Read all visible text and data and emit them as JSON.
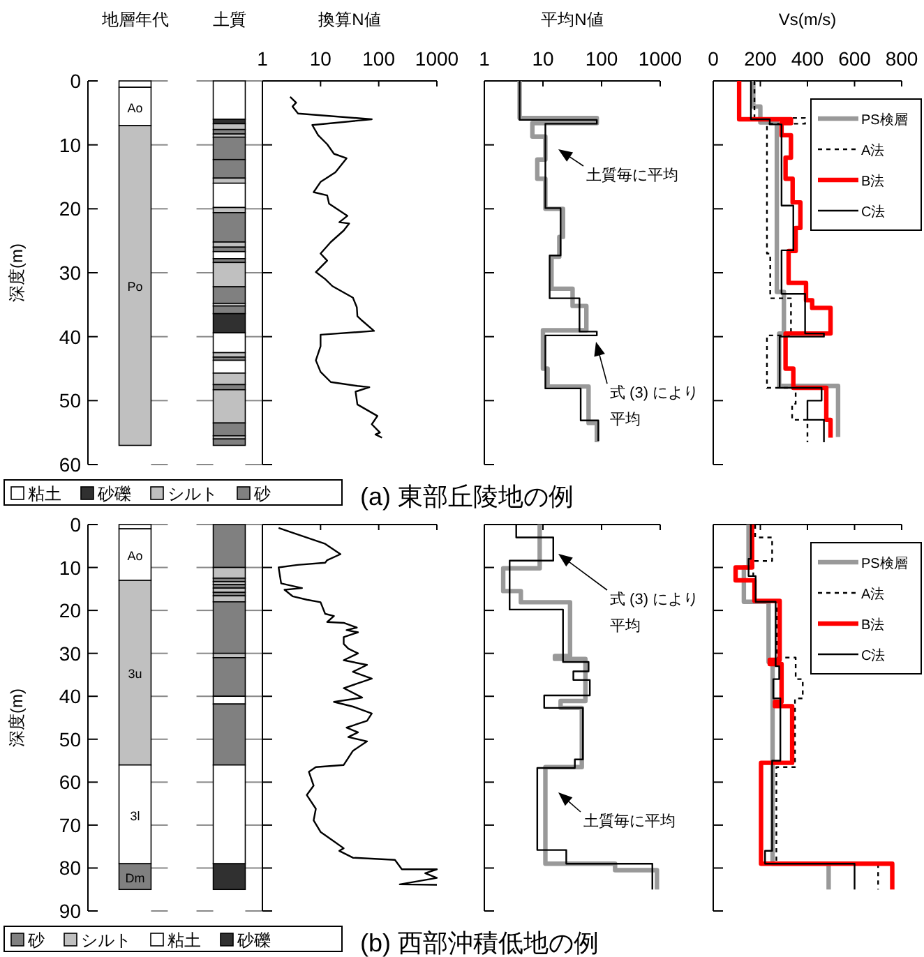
{
  "chart_data": [
    {
      "type": "bar",
      "stacked": true,
      "ylabel": "深度(m)",
      "categories": [
        "地層年代",
        "土質"
      ],
      "ylim": [
        60,
        0
      ],
      "yticks": [
        0,
        10,
        20,
        30,
        40,
        50,
        60
      ],
      "legend": "bottom",
      "annotations": [
        "(a) 東部丘陵地の例"
      ],
      "series": [
        {
          "color": "#ffffff",
          "values": [
            1,
            null
          ]
        },
        {
          "name": "Ao",
          "color": "#ffffff",
          "values": [
            6,
            null
          ]
        },
        {
          "name": "Po",
          "color": "#c0c0c0",
          "values": [
            50,
            null
          ]
        },
        {
          "name": "粘土",
          "color": "#ffffff",
          "values": [
            null,
            6
          ]
        },
        {
          "name": "砂礫",
          "color": "#303030",
          "values": [
            null,
            0.7
          ]
        },
        {
          "name": "シルト",
          "color": "#c0c0c0",
          "values": [
            null,
            0.9
          ]
        },
        {
          "name": "砂",
          "color": "#808080",
          "values": [
            null,
            0.7
          ]
        },
        {
          "color": "#c0c0c0",
          "values": [
            null,
            0.5
          ]
        },
        {
          "color": "#808080",
          "values": [
            null,
            3.5
          ]
        },
        {
          "color": "#808080",
          "values": [
            null,
            2.9
          ]
        },
        {
          "color": "#c0c0c0",
          "values": [
            null,
            0.8
          ]
        },
        {
          "color": "#ffffff",
          "values": [
            null,
            3.8
          ]
        },
        {
          "color": "#c0c0c0",
          "values": [
            null,
            0.8
          ]
        },
        {
          "color": "#808080",
          "values": [
            null,
            4.6
          ]
        },
        {
          "color": "#c0c0c0",
          "values": [
            null,
            0.8
          ]
        },
        {
          "color": "#808080",
          "values": [
            null,
            0.7
          ]
        },
        {
          "color": "#ffffff",
          "values": [
            null,
            1.1
          ]
        },
        {
          "color": "#808080",
          "values": [
            null,
            0.6
          ]
        },
        {
          "color": "#c0c0c0",
          "values": [
            null,
            3.8
          ]
        },
        {
          "color": "#808080",
          "values": [
            null,
            2.6
          ]
        },
        {
          "color": "#c0c0c0",
          "values": [
            null,
            0.4
          ]
        },
        {
          "color": "#808080",
          "values": [
            null,
            1.2
          ]
        },
        {
          "color": "#303030",
          "values": [
            null,
            3
          ]
        },
        {
          "color": "#ffffff",
          "values": [
            null,
            3.1
          ]
        },
        {
          "color": "#c0c0c0",
          "values": [
            null,
            0.7
          ]
        },
        {
          "color": "#808080",
          "values": [
            null,
            0.5
          ]
        },
        {
          "color": "#ffffff",
          "values": [
            null,
            2
          ]
        },
        {
          "color": "#c0c0c0",
          "values": [
            null,
            1.8
          ]
        },
        {
          "color": "#808080",
          "values": [
            null,
            0.8
          ]
        },
        {
          "color": "#c0c0c0",
          "values": [
            null,
            5.2
          ]
        },
        {
          "color": "#808080",
          "values": [
            null,
            2
          ]
        },
        {
          "color": "#c0c0c0",
          "values": [
            null,
            0.5
          ]
        },
        {
          "color": "#808080",
          "values": [
            null,
            1
          ]
        }
      ]
    },
    {
      "type": "line",
      "title": "換算N値",
      "log": "x",
      "xlim": [
        1,
        1000
      ],
      "xticks": [
        1,
        10,
        100,
        1000
      ],
      "ylim": [
        60,
        0
      ],
      "yticks": [
        0,
        10,
        20,
        30,
        40,
        50,
        60
      ],
      "tick_labels": "x",
      "series": [
        {
          "color": "#000000",
          "x": [
            3.0,
            3.8,
            3.3,
            4.1,
            76,
            7.2,
            9.1,
            13,
            17,
            28,
            18,
            10,
            7.6,
            13,
            14,
            29,
            21,
            31,
            25,
            15,
            10,
            13,
            8.3,
            12,
            16,
            36,
            42,
            43,
            52,
            83,
            10,
            10,
            8.3,
            10,
            15,
            43,
            69,
            40,
            43,
            95,
            76,
            105,
            88,
            114
          ],
          "values": [
            2.5,
            3.4,
            4.0,
            5.1,
            6.0,
            6.9,
            8.5,
            9.9,
            11.4,
            12.1,
            14.3,
            15.8,
            17.4,
            17.9,
            19.2,
            21.1,
            22.1,
            22.3,
            23.4,
            25.2,
            27.0,
            28.1,
            29.9,
            31.0,
            32.1,
            33.9,
            35.4,
            36.8,
            37.5,
            39.1,
            39.7,
            41.5,
            43.7,
            45.5,
            47.1,
            47.7,
            47.9,
            48.6,
            50.6,
            52.4,
            53.7,
            55.0,
            55.3,
            55.8
          ]
        }
      ]
    },
    {
      "type": "line",
      "title": "平均N値",
      "log": "x",
      "xlim": [
        1,
        1000
      ],
      "xticks": [
        1,
        10,
        100,
        1000
      ],
      "ylim": [
        60,
        0
      ],
      "yticks": [
        0,
        10,
        20,
        30,
        40,
        50,
        60
      ],
      "tick_labels": "x",
      "annotations": [
        "土質毎に平均",
        "式 (3) により平均"
      ],
      "series": [
        {
          "color": "#999999",
          "x": [
            4,
            4,
            83,
            83,
            6.6,
            6.6,
            11,
            11,
            8,
            8,
            11,
            11,
            22,
            22,
            19,
            19,
            14,
            14,
            32,
            32,
            55,
            55,
            10,
            10,
            12,
            12,
            60,
            60,
            83,
            83
          ],
          "values": [
            0,
            5.8,
            5.8,
            6.6,
            6.6,
            8.7,
            8.7,
            12.3,
            12.3,
            15.3,
            15.3,
            20,
            20,
            24.4,
            24.4,
            27.5,
            27.5,
            32.5,
            32.5,
            35.2,
            35.2,
            39,
            39,
            45,
            45,
            47.8,
            47.8,
            53.5,
            53.5,
            56.5
          ]
        },
        {
          "color": "#000000",
          "x": [
            4,
            4,
            83,
            83,
            11,
            11,
            20,
            20,
            13,
            13,
            42,
            42,
            83,
            83,
            11,
            11,
            44,
            44,
            88,
            88
          ],
          "values": [
            0,
            6.1,
            6.1,
            6.7,
            6.7,
            19.9,
            19.9,
            27.3,
            27.3,
            34,
            34,
            39.2,
            39.2,
            39.8,
            39.8,
            48.1,
            48.1,
            53.1,
            53.1,
            56.3
          ]
        }
      ]
    },
    {
      "type": "line",
      "title": "Vs(m/s)",
      "xlim": [
        0,
        800
      ],
      "xticks": [
        0,
        200,
        400,
        600,
        800
      ],
      "ylim": [
        60,
        0
      ],
      "yticks": [
        0,
        10,
        20,
        30,
        40,
        50,
        60
      ],
      "tick_labels": "x",
      "legend": "top right",
      "series": [
        {
          "name": "PS検層",
          "color": "#999999",
          "x": [
            170,
            170,
            200,
            200,
            270,
            270,
            300,
            300,
            280,
            280,
            530,
            530
          ],
          "values": [
            0,
            4,
            4,
            6.5,
            6.5,
            33,
            33,
            39.5,
            39.5,
            47.7,
            47.7,
            55.7
          ]
        },
        {
          "name": "A法",
          "color": "#000000",
          "line_style": "dashed",
          "x": [
            175,
            175,
            390,
            390,
            228,
            228,
            242,
            242,
            330,
            330,
            228,
            228,
            350,
            350,
            335,
            335,
            400,
            400
          ],
          "values": [
            0,
            5.8,
            5.8,
            6.7,
            6.7,
            27,
            27,
            34,
            34,
            39.8,
            39.8,
            48,
            48,
            50.5,
            50.5,
            53,
            53,
            56.5
          ]
        },
        {
          "name": "B法",
          "color": "#ff0000",
          "x": [
            110,
            110,
            330,
            330,
            290,
            290,
            330,
            330,
            307,
            307,
            337,
            337,
            370,
            370,
            350,
            350,
            320,
            320,
            394,
            394,
            420,
            420,
            498,
            498,
            307,
            307,
            340,
            340,
            480,
            480,
            498,
            498
          ],
          "values": [
            0,
            6,
            6,
            6.6,
            6.6,
            8.5,
            8.5,
            12,
            12,
            15.3,
            15.3,
            19,
            19,
            23,
            23,
            26.6,
            26.6,
            31.6,
            31.6,
            34.3,
            34.3,
            35.5,
            35.5,
            39.5,
            39.5,
            45,
            45,
            48,
            48,
            53,
            53,
            55.8
          ]
        },
        {
          "name": "C法",
          "color": "#000000",
          "x": [
            160,
            160,
            240,
            240,
            290,
            290,
            340,
            340,
            290,
            290,
            390,
            390,
            470,
            470,
            282,
            282,
            460,
            460,
            400,
            400,
            470,
            470
          ],
          "values": [
            0,
            6,
            6,
            6.8,
            6.8,
            19.5,
            19.5,
            26.5,
            26.5,
            33.3,
            33.3,
            39.5,
            39.5,
            40,
            40,
            48,
            48,
            50,
            50,
            53,
            53,
            56.5
          ]
        }
      ]
    },
    {
      "type": "bar",
      "stacked": true,
      "ylabel": "深度(m)",
      "categories": [
        null,
        null
      ],
      "ylim": [
        90,
        0
      ],
      "yticks": [
        0,
        10,
        20,
        30,
        40,
        50,
        60,
        70,
        80,
        90
      ],
      "legend": "bottom",
      "annotations": [
        "(b) 西部沖積低地の例"
      ],
      "series": [
        {
          "color": "#ffffff",
          "values": [
            1,
            null
          ]
        },
        {
          "name": "Ao",
          "color": "#ffffff",
          "values": [
            12,
            null
          ]
        },
        {
          "name": "3u",
          "color": "#c0c0c0",
          "values": [
            43,
            null
          ]
        },
        {
          "name": "3l",
          "color": "#ffffff",
          "values": [
            23,
            null
          ]
        },
        {
          "name": "Dm",
          "color": "#808080",
          "values": [
            6,
            null
          ]
        },
        {
          "name": "砂",
          "color": "#808080",
          "values": [
            null,
            10
          ]
        },
        {
          "name": "シルト",
          "color": "#c0c0c0",
          "values": [
            null,
            2.5
          ]
        },
        {
          "color": "#808080",
          "values": [
            null,
            0.8
          ]
        },
        {
          "color": "#c0c0c0",
          "values": [
            null,
            0.7
          ]
        },
        {
          "color": "#808080",
          "values": [
            null,
            0.8
          ]
        },
        {
          "color": "#c0c0c0",
          "values": [
            null,
            1
          ]
        },
        {
          "color": "#808080",
          "values": [
            null,
            0.8
          ]
        },
        {
          "color": "#c0c0c0",
          "values": [
            null,
            1.4
          ]
        },
        {
          "color": "#808080",
          "values": [
            null,
            12
          ]
        },
        {
          "color": "#c0c0c0",
          "values": [
            null,
            1
          ]
        },
        {
          "color": "#808080",
          "values": [
            null,
            9
          ]
        },
        {
          "name": "粘土",
          "color": "#ffffff",
          "values": [
            null,
            1.8
          ]
        },
        {
          "color": "#808080",
          "values": [
            null,
            14.2
          ]
        },
        {
          "color": "#ffffff",
          "values": [
            null,
            23
          ]
        },
        {
          "name": "砂礫",
          "color": "#303030",
          "values": [
            null,
            6
          ]
        }
      ]
    },
    {
      "type": "line",
      "log": "x",
      "xlim": [
        1,
        1000
      ],
      "xticks": [
        1,
        10,
        100,
        1000
      ],
      "ylim": [
        90,
        0
      ],
      "yticks": [
        0,
        10,
        20,
        30,
        40,
        50,
        60,
        70,
        80,
        90
      ],
      "tick_labels": false,
      "series": [
        {
          "color": "#000000",
          "x": [
            1.9,
            12,
            22,
            13,
            12,
            4,
            1.9,
            2.1,
            4.8,
            2.4,
            3.3,
            5.8,
            10,
            12,
            17,
            13,
            25,
            42,
            28,
            44,
            25,
            25,
            30,
            44,
            25,
            63,
            36,
            76,
            25,
            52,
            17,
            36,
            76,
            63,
            28,
            44,
            30,
            63,
            36,
            25,
            8.3,
            6.3,
            7.6,
            5.8,
            8.3,
            7.6,
            10,
            17,
            25,
            21,
            36,
            190,
            250,
            1000,
            630,
            1000,
            230,
            1000
          ],
          "values": [
            0.8,
            4.5,
            6.9,
            8.3,
            8.9,
            9.4,
            10,
            13.7,
            14.8,
            15.2,
            16.7,
            17.5,
            18.1,
            20.8,
            21.3,
            22.7,
            22.9,
            24.0,
            24.6,
            25.1,
            26.2,
            27.8,
            28.9,
            30.0,
            31.6,
            32.7,
            34.3,
            35.9,
            38.1,
            40.3,
            41.3,
            42.4,
            44.0,
            45.7,
            47.3,
            48.4,
            49.5,
            50.5,
            52.7,
            56.0,
            56.5,
            57.6,
            60.8,
            63.0,
            66.2,
            68.9,
            71.6,
            73.8,
            75.4,
            76.0,
            77.6,
            78.1,
            80.3,
            80.3,
            81.2,
            82.3,
            83.8,
            83.9
          ]
        }
      ]
    },
    {
      "type": "line",
      "log": "x",
      "xlim": [
        1,
        1000
      ],
      "xticks": [
        1,
        10,
        100,
        1000
      ],
      "ylim": [
        90,
        0
      ],
      "yticks": [
        0,
        10,
        20,
        30,
        40,
        50,
        60,
        70,
        80,
        90
      ],
      "tick_labels": false,
      "annotations": [
        "式 (3) により平均",
        "土質毎に平均"
      ],
      "series": [
        {
          "color": "#999999",
          "x": [
            8.8,
            8.8,
            2.1,
            2.1,
            4.2,
            4.2,
            29,
            29,
            16,
            16,
            53,
            53,
            20,
            20,
            46,
            46,
            11,
            11,
            170,
            170,
            880,
            880
          ],
          "values": [
            0,
            10.2,
            10.2,
            15.5,
            15.5,
            18.1,
            18.1,
            30.6,
            30.6,
            31.3,
            31.3,
            41.1,
            41.1,
            42.7,
            42.7,
            56.5,
            56.5,
            79,
            79,
            80.5,
            80.5,
            85
          ]
        },
        {
          "color": "#000000",
          "x": [
            3.5,
            3.5,
            15,
            15,
            2.7,
            2.7,
            22,
            22,
            60,
            60,
            33,
            33,
            63,
            63,
            10.5,
            10.5,
            48,
            48,
            35,
            35,
            8,
            8,
            25,
            25,
            735,
            735
          ],
          "values": [
            0,
            3,
            3,
            8.4,
            8.4,
            19.8,
            19.8,
            32,
            32,
            34.2,
            34.2,
            36.2,
            36.2,
            39.8,
            39.8,
            42.7,
            42.7,
            54.7,
            54.7,
            56.7,
            56.7,
            75.8,
            75.8,
            79,
            79,
            85
          ]
        }
      ]
    },
    {
      "type": "line",
      "xlim": [
        0,
        800
      ],
      "xticks": [
        0,
        200,
        400,
        600,
        800
      ],
      "ylim": [
        90,
        0
      ],
      "yticks": [
        0,
        10,
        20,
        30,
        40,
        50,
        60,
        70,
        80,
        90
      ],
      "tick_labels": false,
      "legend": "top right",
      "series": [
        {
          "name": "PS検層",
          "color": "#999999",
          "x": [
            150,
            150,
            130,
            130,
            235,
            235,
            252,
            252,
            490,
            490
          ],
          "values": [
            0,
            10,
            10,
            18,
            18,
            32,
            32,
            79,
            79,
            85
          ]
        },
        {
          "name": "A法",
          "color": "#000000",
          "line_style": "dashed",
          "x": [
            178,
            178,
            250,
            250,
            170,
            170,
            270,
            270,
            350,
            350,
            380,
            380,
            347,
            347,
            268,
            268,
            700,
            700
          ],
          "values": [
            0,
            3,
            3,
            8.5,
            8.5,
            18,
            18,
            31,
            31,
            36,
            36,
            40.5,
            40.5,
            56.5,
            56.5,
            79,
            79,
            85
          ]
        },
        {
          "name": "B法",
          "color": "#ff0000",
          "x": [
            165,
            165,
            95,
            95,
            175,
            175,
            282,
            282,
            240,
            240,
            290,
            290,
            262,
            262,
            335,
            335,
            203,
            203,
            760,
            760
          ],
          "values": [
            0,
            10,
            10,
            13,
            13,
            17.8,
            17.8,
            31.5,
            31.5,
            32.5,
            32.5,
            41.3,
            41.3,
            42.3,
            42.3,
            55.5,
            55.5,
            79,
            79,
            85
          ]
        },
        {
          "name": "C法",
          "color": "#000000",
          "x": [
            160,
            160,
            150,
            150,
            180,
            180,
            265,
            265,
            280,
            280,
            255,
            255,
            285,
            285,
            250,
            250,
            220,
            220,
            600,
            600
          ],
          "values": [
            0,
            8,
            8,
            12,
            12,
            18,
            18,
            33,
            33,
            36,
            36,
            40.5,
            40.5,
            55,
            55,
            76,
            76,
            79,
            79,
            85
          ]
        }
      ]
    }
  ]
}
